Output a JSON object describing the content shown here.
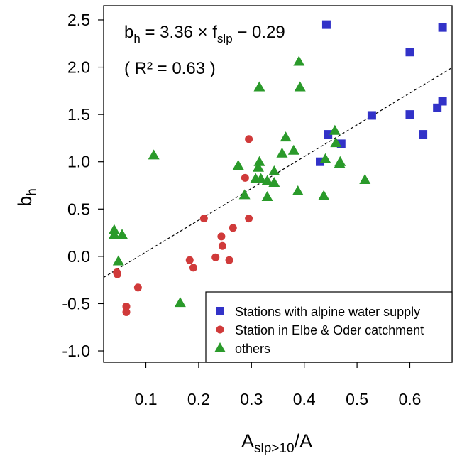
{
  "chart_data": {
    "type": "scatter",
    "title": "",
    "xlabel": {
      "main": "A",
      "sub": "slp>10",
      "slash": "/",
      "tail": "A"
    },
    "ylabel": {
      "main": "b",
      "sub": "h"
    },
    "xlim": [
      0.02,
      0.68
    ],
    "ylim": [
      -1.12,
      2.65
    ],
    "x_ticks": [
      {
        "value": 0.1,
        "label": "0.1"
      },
      {
        "value": 0.2,
        "label": "0.2"
      },
      {
        "value": 0.3,
        "label": "0.3"
      },
      {
        "value": 0.4,
        "label": "0.4"
      },
      {
        "value": 0.5,
        "label": "0.5"
      },
      {
        "value": 0.6,
        "label": "0.6"
      }
    ],
    "y_ticks": [
      {
        "value": -1.0,
        "label": "-1.0"
      },
      {
        "value": -0.5,
        "label": "-0.5"
      },
      {
        "value": 0.0,
        "label": "0.0"
      },
      {
        "value": 0.5,
        "label": "0.5"
      },
      {
        "value": 1.0,
        "label": "1.0"
      },
      {
        "value": 1.5,
        "label": "1.5"
      },
      {
        "value": 2.0,
        "label": "2.0"
      },
      {
        "value": 2.5,
        "label": "2.5"
      }
    ],
    "grid": false,
    "legend_position": "bottom-right",
    "annotation": {
      "lhs_main": "b",
      "lhs_sub": "h",
      "eq": " = 3.36 × f",
      "f_sub": "slp",
      "tail": " − 0.29",
      "r2": "( R² = 0.63 )"
    },
    "fit": {
      "slope": 3.36,
      "intercept": -0.29,
      "style": "dashed"
    },
    "series": [
      {
        "name": "Stations with alpine water supply",
        "marker": "square",
        "color": "#3232c8",
        "points": [
          [
            0.442,
            2.45
          ],
          [
            0.662,
            2.42
          ],
          [
            0.6,
            2.16
          ],
          [
            0.662,
            1.64
          ],
          [
            0.652,
            1.57
          ],
          [
            0.6,
            1.5
          ],
          [
            0.528,
            1.49
          ],
          [
            0.625,
            1.29
          ],
          [
            0.445,
            1.29
          ],
          [
            0.47,
            1.19
          ],
          [
            0.43,
            1.0
          ]
        ]
      },
      {
        "name": "Station in Elbe & Oder catchment",
        "marker": "circle",
        "color": "#d03a3a",
        "points": [
          [
            0.295,
            1.24
          ],
          [
            0.288,
            0.83
          ],
          [
            0.21,
            0.4
          ],
          [
            0.295,
            0.4
          ],
          [
            0.265,
            0.3
          ],
          [
            0.243,
            0.21
          ],
          [
            0.245,
            0.11
          ],
          [
            0.232,
            -0.01
          ],
          [
            0.258,
            -0.04
          ],
          [
            0.183,
            -0.04
          ],
          [
            0.19,
            -0.12
          ],
          [
            0.045,
            -0.17
          ],
          [
            0.046,
            -0.19
          ],
          [
            0.085,
            -0.33
          ],
          [
            0.063,
            -0.53
          ],
          [
            0.063,
            -0.59
          ]
        ]
      },
      {
        "name": "others",
        "marker": "triangle",
        "color": "#2a9a2a",
        "points": [
          [
            0.39,
            2.06
          ],
          [
            0.315,
            1.79
          ],
          [
            0.392,
            1.79
          ],
          [
            0.458,
            1.33
          ],
          [
            0.365,
            1.26
          ],
          [
            0.46,
            1.2
          ],
          [
            0.38,
            1.12
          ],
          [
            0.358,
            1.09
          ],
          [
            0.115,
            1.07
          ],
          [
            0.44,
            1.03
          ],
          [
            0.315,
            1.0
          ],
          [
            0.468,
            1.0
          ],
          [
            0.467,
            0.98
          ],
          [
            0.275,
            0.96
          ],
          [
            0.313,
            0.94
          ],
          [
            0.343,
            0.9
          ],
          [
            0.318,
            0.82
          ],
          [
            0.308,
            0.82
          ],
          [
            0.33,
            0.8
          ],
          [
            0.343,
            0.78
          ],
          [
            0.515,
            0.81
          ],
          [
            0.388,
            0.69
          ],
          [
            0.287,
            0.65
          ],
          [
            0.33,
            0.63
          ],
          [
            0.437,
            0.64
          ],
          [
            0.04,
            0.28
          ],
          [
            0.04,
            0.23
          ],
          [
            0.055,
            0.23
          ],
          [
            0.048,
            -0.05
          ],
          [
            0.165,
            -0.49
          ]
        ]
      }
    ]
  }
}
